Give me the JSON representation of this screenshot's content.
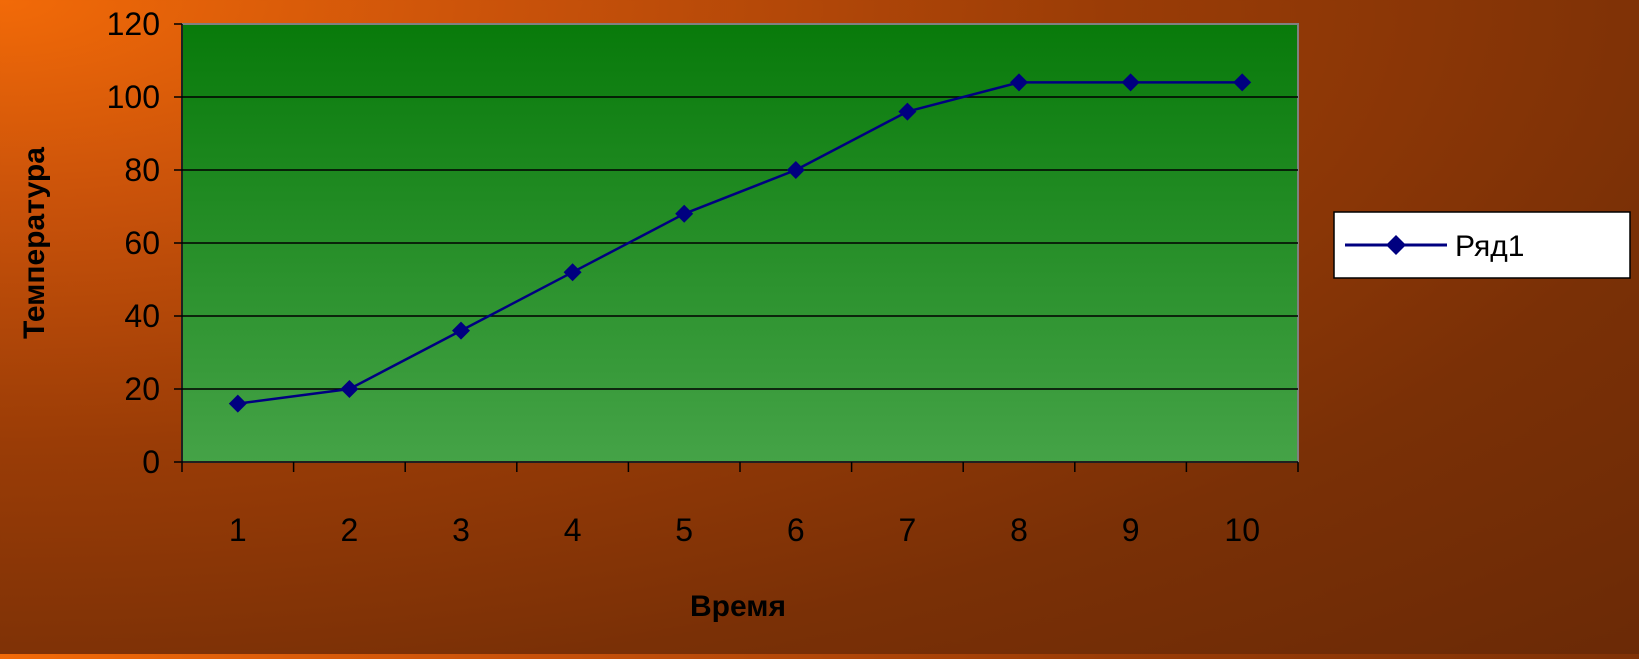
{
  "chart_data": {
    "type": "line",
    "title": "",
    "xlabel": "Время",
    "ylabel": "Температура",
    "categories": [
      "1",
      "2",
      "3",
      "4",
      "5",
      "6",
      "7",
      "8",
      "9",
      "10"
    ],
    "series": [
      {
        "name": "Ряд1",
        "values": [
          16,
          20,
          36,
          52,
          68,
          80,
          96,
          104,
          104,
          104
        ],
        "color": "#000080",
        "marker": "diamond"
      }
    ],
    "y_ticks": [
      "0",
      "20",
      "40",
      "60",
      "80",
      "100",
      "120"
    ],
    "ylim": [
      0,
      120
    ],
    "grid": true,
    "legend_position": "right",
    "plot_background": [
      "#087a0a",
      "#45a347"
    ],
    "gridline_color": "#000000"
  }
}
